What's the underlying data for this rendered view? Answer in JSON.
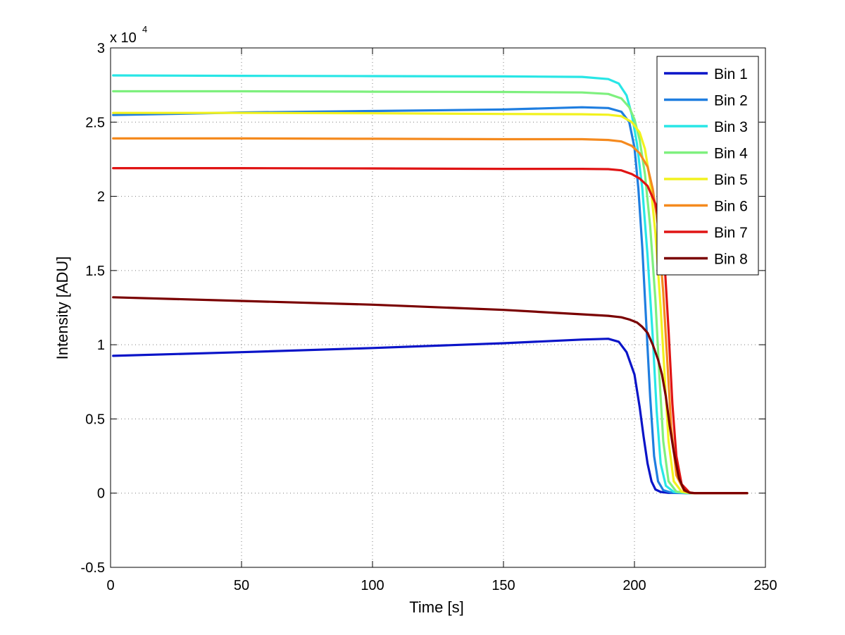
{
  "chart_data": {
    "type": "line",
    "title": "",
    "xlabel": "Time [s]",
    "ylabel": "Intensity [ADU]",
    "exponent_base": "x 10",
    "exponent_power": "4",
    "xlim": [
      0,
      250
    ],
    "ylim": [
      -0.5,
      3
    ],
    "grid": true,
    "legend_position": "top-right",
    "xticks": [
      0,
      50,
      100,
      150,
      200,
      250
    ],
    "xtick_labels": [
      "0",
      "50",
      "100",
      "150",
      "200",
      "250"
    ],
    "yticks": [
      -0.5,
      0,
      0.5,
      1,
      1.5,
      2,
      2.5,
      3
    ],
    "ytick_labels": [
      "-0.5",
      "0",
      "0.5",
      "1",
      "1.5",
      "2",
      "2.5",
      "3"
    ],
    "series": [
      {
        "name": "Bin 1",
        "color": "#0a14c8",
        "points": [
          [
            1,
            0.925
          ],
          [
            50,
            0.95
          ],
          [
            100,
            0.978
          ],
          [
            150,
            1.01
          ],
          [
            180,
            1.035
          ],
          [
            190,
            1.04
          ],
          [
            194,
            1.02
          ],
          [
            197,
            0.95
          ],
          [
            200,
            0.8
          ],
          [
            202,
            0.58
          ],
          [
            203.5,
            0.38
          ],
          [
            205,
            0.2
          ],
          [
            206.5,
            0.08
          ],
          [
            208,
            0.025
          ],
          [
            210,
            0.008
          ],
          [
            213,
            0.002
          ],
          [
            220,
            0.0
          ],
          [
            243,
            0.0
          ]
        ]
      },
      {
        "name": "Bin 2",
        "color": "#1f7ee0",
        "points": [
          [
            1,
            2.548
          ],
          [
            50,
            2.565
          ],
          [
            100,
            2.575
          ],
          [
            150,
            2.585
          ],
          [
            180,
            2.6
          ],
          [
            190,
            2.595
          ],
          [
            195,
            2.57
          ],
          [
            198,
            2.5
          ],
          [
            200,
            2.33
          ],
          [
            201.5,
            2.05
          ],
          [
            203,
            1.65
          ],
          [
            204.5,
            1.15
          ],
          [
            206,
            0.65
          ],
          [
            207.5,
            0.25
          ],
          [
            209,
            0.08
          ],
          [
            211,
            0.02
          ],
          [
            214,
            0.004
          ],
          [
            220,
            0.0
          ],
          [
            243,
            0.0
          ]
        ]
      },
      {
        "name": "Bin 3",
        "color": "#28e6e6",
        "points": [
          [
            1,
            2.815
          ],
          [
            50,
            2.812
          ],
          [
            100,
            2.81
          ],
          [
            150,
            2.808
          ],
          [
            180,
            2.805
          ],
          [
            190,
            2.79
          ],
          [
            194,
            2.76
          ],
          [
            197,
            2.68
          ],
          [
            199,
            2.55
          ],
          [
            201,
            2.35
          ],
          [
            203,
            2.05
          ],
          [
            205,
            1.6
          ],
          [
            207,
            1.05
          ],
          [
            208.5,
            0.55
          ],
          [
            210,
            0.2
          ],
          [
            212,
            0.05
          ],
          [
            215,
            0.008
          ],
          [
            220,
            0.0
          ],
          [
            243,
            0.0
          ]
        ]
      },
      {
        "name": "Bin 4",
        "color": "#7ef07e",
        "points": [
          [
            1,
            2.708
          ],
          [
            50,
            2.708
          ],
          [
            100,
            2.705
          ],
          [
            150,
            2.703
          ],
          [
            180,
            2.7
          ],
          [
            190,
            2.69
          ],
          [
            195,
            2.66
          ],
          [
            198,
            2.6
          ],
          [
            200,
            2.52
          ],
          [
            202,
            2.38
          ],
          [
            204,
            2.15
          ],
          [
            206,
            1.8
          ],
          [
            208,
            1.3
          ],
          [
            209.5,
            0.8
          ],
          [
            211,
            0.35
          ],
          [
            213,
            0.08
          ],
          [
            216,
            0.01
          ],
          [
            221,
            0.0
          ],
          [
            243,
            0.0
          ]
        ]
      },
      {
        "name": "Bin 5",
        "color": "#f2f21e",
        "points": [
          [
            1,
            2.562
          ],
          [
            50,
            2.562
          ],
          [
            100,
            2.56
          ],
          [
            150,
            2.555
          ],
          [
            180,
            2.553
          ],
          [
            190,
            2.55
          ],
          [
            195,
            2.54
          ],
          [
            199,
            2.5
          ],
          [
            202,
            2.43
          ],
          [
            204,
            2.32
          ],
          [
            206,
            2.1
          ],
          [
            208,
            1.75
          ],
          [
            210,
            1.25
          ],
          [
            211.5,
            0.8
          ],
          [
            213,
            0.35
          ],
          [
            215,
            0.08
          ],
          [
            218,
            0.01
          ],
          [
            222,
            0.0
          ],
          [
            243,
            0.0
          ]
        ]
      },
      {
        "name": "Bin 6",
        "color": "#f58a1e",
        "points": [
          [
            1,
            2.39
          ],
          [
            50,
            2.39
          ],
          [
            100,
            2.388
          ],
          [
            150,
            2.385
          ],
          [
            180,
            2.385
          ],
          [
            190,
            2.38
          ],
          [
            195,
            2.37
          ],
          [
            199,
            2.34
          ],
          [
            202,
            2.29
          ],
          [
            205,
            2.2
          ],
          [
            207,
            2.05
          ],
          [
            209,
            1.8
          ],
          [
            211,
            1.35
          ],
          [
            212.5,
            0.9
          ],
          [
            214,
            0.45
          ],
          [
            216,
            0.12
          ],
          [
            219,
            0.015
          ],
          [
            222,
            0.0
          ],
          [
            243,
            0.0
          ]
        ]
      },
      {
        "name": "Bin 7",
        "color": "#e01414",
        "points": [
          [
            1,
            2.19
          ],
          [
            50,
            2.19
          ],
          [
            100,
            2.188
          ],
          [
            150,
            2.185
          ],
          [
            180,
            2.185
          ],
          [
            190,
            2.183
          ],
          [
            195,
            2.175
          ],
          [
            199,
            2.15
          ],
          [
            202,
            2.12
          ],
          [
            205,
            2.07
          ],
          [
            208,
            1.95
          ],
          [
            210,
            1.78
          ],
          [
            211.5,
            1.55
          ],
          [
            213,
            1.1
          ],
          [
            214.5,
            0.6
          ],
          [
            216,
            0.25
          ],
          [
            218,
            0.06
          ],
          [
            221,
            0.005
          ],
          [
            223,
            0.0
          ],
          [
            243,
            0.0
          ]
        ]
      },
      {
        "name": "Bin 8",
        "color": "#7a0000",
        "points": [
          [
            1,
            1.32
          ],
          [
            50,
            1.295
          ],
          [
            100,
            1.27
          ],
          [
            150,
            1.235
          ],
          [
            180,
            1.205
          ],
          [
            190,
            1.195
          ],
          [
            195,
            1.185
          ],
          [
            198,
            1.17
          ],
          [
            201,
            1.15
          ],
          [
            203,
            1.12
          ],
          [
            205,
            1.08
          ],
          [
            207,
            1.0
          ],
          [
            209,
            0.9
          ],
          [
            210.5,
            0.8
          ],
          [
            212,
            0.65
          ],
          [
            213.5,
            0.45
          ],
          [
            215,
            0.28
          ],
          [
            217,
            0.1
          ],
          [
            219,
            0.02
          ],
          [
            221,
            0.003
          ],
          [
            223,
            0.0
          ],
          [
            243,
            0.0
          ]
        ]
      }
    ]
  }
}
